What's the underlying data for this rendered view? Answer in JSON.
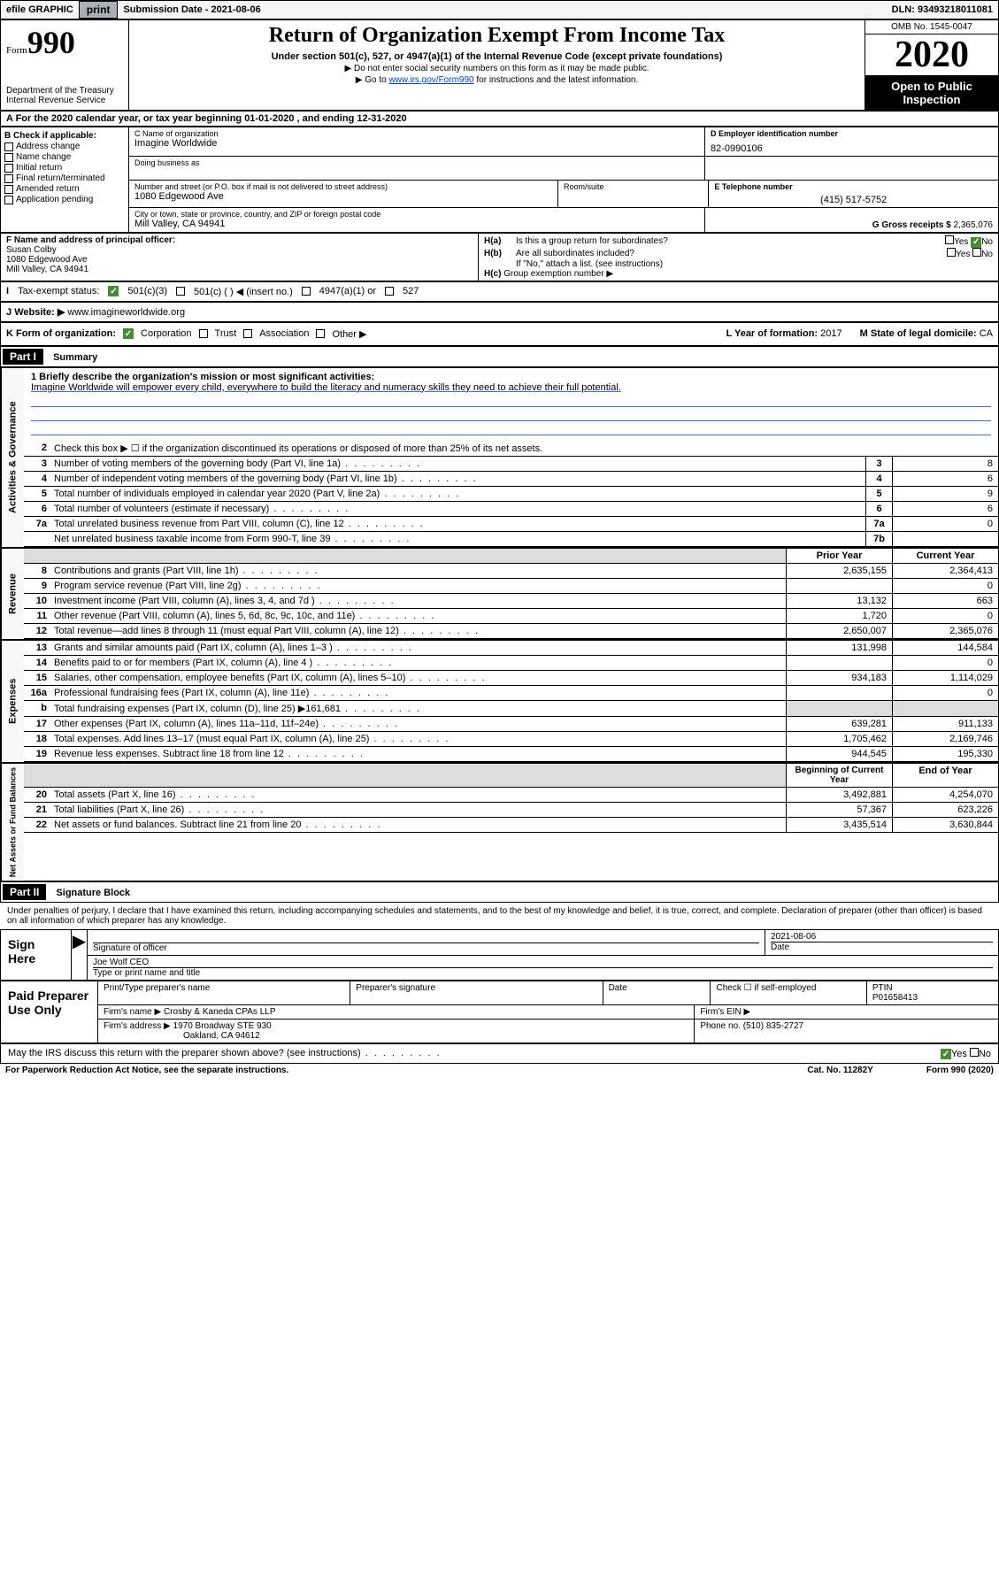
{
  "topbar": {
    "efile": "efile GRAPHIC",
    "print": "print",
    "subdate_label": "Submission Date - ",
    "subdate": "2021-08-06",
    "dln_label": "DLN: ",
    "dln": "93493218011081"
  },
  "header": {
    "form_label": "Form",
    "form_num": "990",
    "dept": "Department of the Treasury\nInternal Revenue Service",
    "title": "Return of Organization Exempt From Income Tax",
    "subtitle": "Under section 501(c), 527, or 4947(a)(1) of the Internal Revenue Code (except private foundations)",
    "note1": "▶ Do not enter social security numbers on this form as it may be made public.",
    "note2_pre": "▶ Go to ",
    "note2_link": "www.irs.gov/Form990",
    "note2_post": " for instructions and the latest information.",
    "omb": "OMB No. 1545-0047",
    "year": "2020",
    "open": "Open to Public Inspection"
  },
  "rowA": {
    "text": "A For the 2020 calendar year, or tax year beginning 01-01-2020     , and ending 12-31-2020"
  },
  "colB": {
    "header": "B Check if applicable:",
    "items": [
      "Address change",
      "Name change",
      "Initial return",
      "Final return/terminated",
      "Amended return",
      "Application pending"
    ]
  },
  "colC": {
    "name_label": "C Name of organization",
    "name": "Imagine Worldwide",
    "dba_label": "Doing business as",
    "addr_label": "Number and street (or P.O. box if mail is not delivered to street address)",
    "room_label": "Room/suite",
    "addr": "1080 Edgewood Ave",
    "city_label": "City or town, state or province, country, and ZIP or foreign postal code",
    "city": "Mill Valley, CA  94941"
  },
  "colD": {
    "ein_label": "D Employer identification number",
    "ein": "82-0990106"
  },
  "colE": {
    "tel_label": "E Telephone number",
    "tel": "(415) 517-5752"
  },
  "colG": {
    "label": "G Gross receipts $ ",
    "val": "2,365,076"
  },
  "colF": {
    "label": "F  Name and address of principal officer:",
    "name": "Susan Colby",
    "addr1": "1080 Edgewood Ave",
    "addr2": "Mill Valley, CA  94941"
  },
  "colH": {
    "ha": "H(a)  Is this a group return for subordinates?",
    "hb": "H(b)  Are all subordinates included?",
    "hnote": "If \"No,\" attach a list. (see instructions)",
    "hc": "H(c)  Group exemption number ▶",
    "yes": "Yes",
    "no": "No"
  },
  "rowI": {
    "label": "Tax-exempt status:",
    "c3": "501(c)(3)",
    "c": "501(c) (   ) ◀ (insert no.)",
    "a1": "4947(a)(1) or",
    "s527": "527"
  },
  "rowJ": {
    "label": "Website: ▶",
    "val": "www.imagineworldwide.org"
  },
  "rowK": {
    "label": "K Form of organization:",
    "corp": "Corporation",
    "trust": "Trust",
    "assoc": "Association",
    "other": "Other ▶",
    "l_label": "L Year of formation: ",
    "l_val": "2017",
    "m_label": "M State of legal domicile: ",
    "m_val": "CA"
  },
  "part1": {
    "header": "Part I",
    "title": "Summary",
    "vert1": "Activities & Governance",
    "vert2": "Revenue",
    "vert3": "Expenses",
    "vert4": "Net Assets or Fund Balances",
    "line1_label": "1  Briefly describe the organization's mission or most significant activities:",
    "line1_text": "Imagine Worldwide will empower every child, everywhere to build the literacy and numeracy skills they need to achieve their full potential.",
    "line2": "Check this box ▶ ☐  if the organization discontinued its operations or disposed of more than 25% of its net assets.",
    "prior": "Prior Year",
    "current": "Current Year",
    "begin": "Beginning of Current Year",
    "end": "End of Year",
    "lines_gov": [
      {
        "n": "3",
        "t": "Number of voting members of the governing body (Part VI, line 1a)",
        "b": "3",
        "v": "8"
      },
      {
        "n": "4",
        "t": "Number of independent voting members of the governing body (Part VI, line 1b)",
        "b": "4",
        "v": "6"
      },
      {
        "n": "5",
        "t": "Total number of individuals employed in calendar year 2020 (Part V, line 2a)",
        "b": "5",
        "v": "9"
      },
      {
        "n": "6",
        "t": "Total number of volunteers (estimate if necessary)",
        "b": "6",
        "v": "6"
      },
      {
        "n": "7a",
        "t": "Total unrelated business revenue from Part VIII, column (C), line 12",
        "b": "7a",
        "v": "0"
      },
      {
        "n": "",
        "t": "Net unrelated business taxable income from Form 990-T, line 39",
        "b": "7b",
        "v": ""
      }
    ],
    "lines_rev": [
      {
        "n": "8",
        "t": "Contributions and grants (Part VIII, line 1h)",
        "p": "2,635,155",
        "c": "2,364,413"
      },
      {
        "n": "9",
        "t": "Program service revenue (Part VIII, line 2g)",
        "p": "",
        "c": "0"
      },
      {
        "n": "10",
        "t": "Investment income (Part VIII, column (A), lines 3, 4, and 7d )",
        "p": "13,132",
        "c": "663"
      },
      {
        "n": "11",
        "t": "Other revenue (Part VIII, column (A), lines 5, 6d, 8c, 9c, 10c, and 11e)",
        "p": "1,720",
        "c": "0"
      },
      {
        "n": "12",
        "t": "Total revenue—add lines 8 through 11 (must equal Part VIII, column (A), line 12)",
        "p": "2,650,007",
        "c": "2,365,076"
      }
    ],
    "lines_exp": [
      {
        "n": "13",
        "t": "Grants and similar amounts paid (Part IX, column (A), lines 1–3 )",
        "p": "131,998",
        "c": "144,584"
      },
      {
        "n": "14",
        "t": "Benefits paid to or for members (Part IX, column (A), line 4 )",
        "p": "",
        "c": "0"
      },
      {
        "n": "15",
        "t": "Salaries, other compensation, employee benefits (Part IX, column (A), lines 5–10)",
        "p": "934,183",
        "c": "1,114,029"
      },
      {
        "n": "16a",
        "t": "Professional fundraising fees (Part IX, column (A), line 11e)",
        "p": "",
        "c": "0"
      },
      {
        "n": "b",
        "t": "Total fundraising expenses (Part IX, column (D), line 25) ▶161,681",
        "p": "",
        "c": "",
        "shade": true
      },
      {
        "n": "17",
        "t": "Other expenses (Part IX, column (A), lines 11a–11d, 11f–24e)",
        "p": "639,281",
        "c": "911,133"
      },
      {
        "n": "18",
        "t": "Total expenses. Add lines 13–17 (must equal Part IX, column (A), line 25)",
        "p": "1,705,462",
        "c": "2,169,746"
      },
      {
        "n": "19",
        "t": "Revenue less expenses. Subtract line 18 from line 12",
        "p": "944,545",
        "c": "195,330"
      }
    ],
    "lines_net": [
      {
        "n": "20",
        "t": "Total assets (Part X, line 16)",
        "p": "3,492,881",
        "c": "4,254,070"
      },
      {
        "n": "21",
        "t": "Total liabilities (Part X, line 26)",
        "p": "57,367",
        "c": "623,226"
      },
      {
        "n": "22",
        "t": "Net assets or fund balances. Subtract line 21 from line 20",
        "p": "3,435,514",
        "c": "3,630,844"
      }
    ]
  },
  "part2": {
    "header": "Part II",
    "title": "Signature Block",
    "perjury": "Under penalties of perjury, I declare that I have examined this return, including accompanying schedules and statements, and to the best of my knowledge and belief, it is true, correct, and complete. Declaration of preparer (other than officer) is based on all information of which preparer has any knowledge.",
    "sign_here": "Sign Here",
    "sig_officer": "Signature of officer",
    "sig_date": "2021-08-06",
    "date_label": "Date",
    "officer_name": "Joe Wolf CEO",
    "type_name": "Type or print name and title",
    "paid": "Paid Preparer Use Only",
    "prep_name_label": "Print/Type preparer's name",
    "prep_sig_label": "Preparer's signature",
    "check_label": "Check ☐ if self-employed",
    "ptin_label": "PTIN",
    "ptin": "P01658413",
    "firm_label": "Firm's name    ▶",
    "firm": "Crosby & Kaneda CPAs LLP",
    "firm_ein_label": "Firm's EIN ▶",
    "firm_addr_label": "Firm's address ▶",
    "firm_addr1": "1970 Broadway STE 930",
    "firm_addr2": "Oakland, CA  94612",
    "phone_label": "Phone no. ",
    "phone": "(510) 835-2727",
    "discuss": "May the IRS discuss this return with the preparer shown above? (see instructions)",
    "yes": "Yes",
    "no": "No"
  },
  "footer": {
    "left": "For Paperwork Reduction Act Notice, see the separate instructions.",
    "mid": "Cat. No. 11282Y",
    "right": "Form 990 (2020)"
  }
}
